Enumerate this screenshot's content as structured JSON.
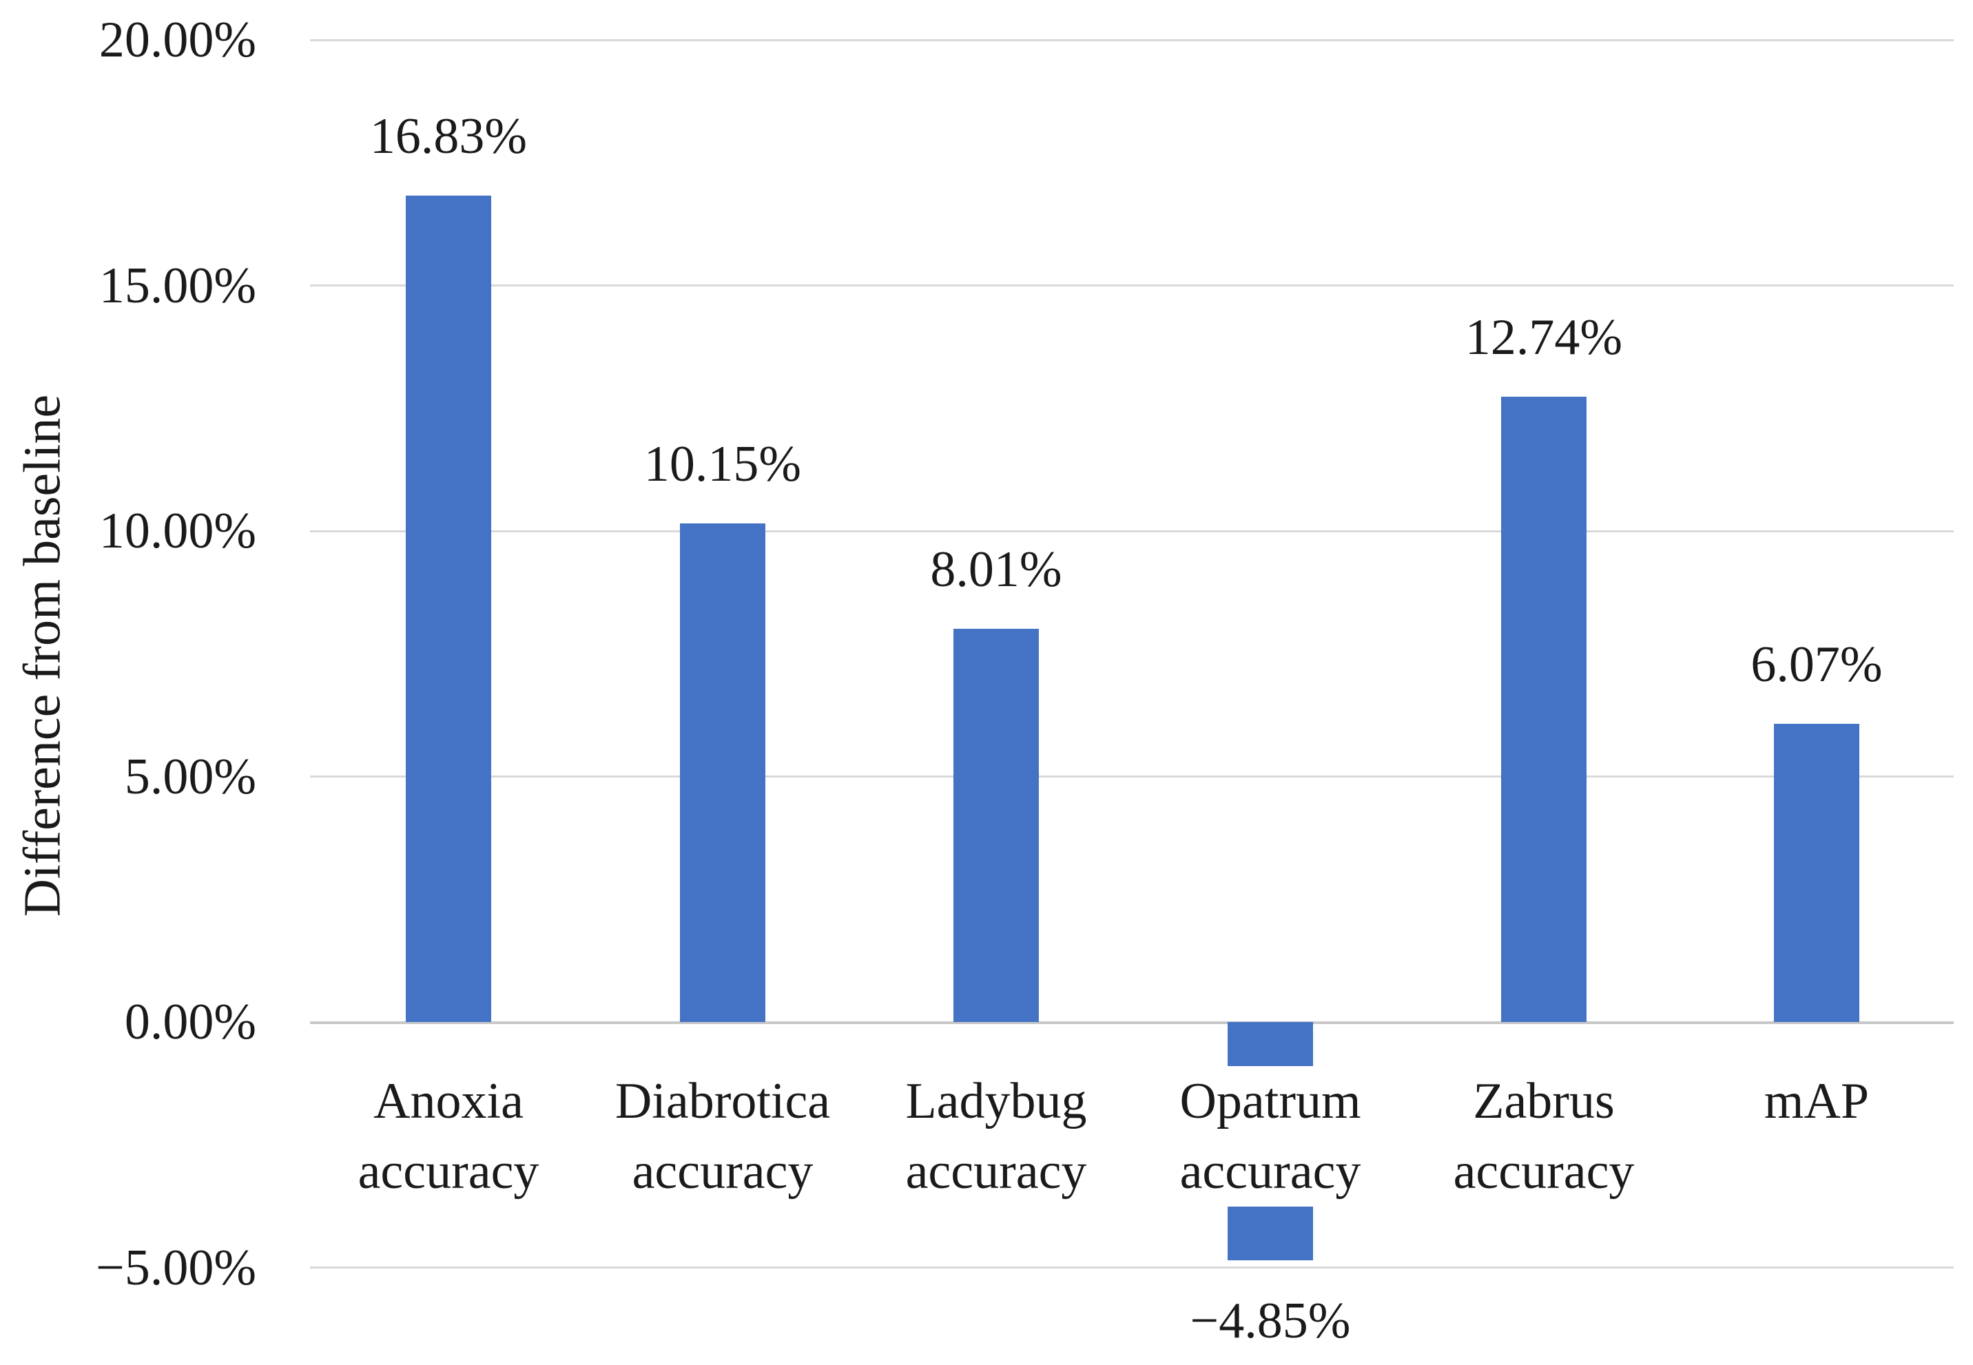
{
  "chart_data": {
    "type": "bar",
    "title": "",
    "xlabel": "",
    "ylabel": "Difference from baseline",
    "categories": [
      "Anoxia accuracy",
      "Diabrotica accuracy",
      "Ladybug accuracy",
      "Opatrum accuracy",
      "Zabrus accuracy",
      "mAP"
    ],
    "category_lines": [
      [
        "Anoxia",
        "accuracy"
      ],
      [
        "Diabrotica",
        "accuracy"
      ],
      [
        "Ladybug",
        "accuracy"
      ],
      [
        "Opatrum",
        "accuracy"
      ],
      [
        "Zabrus",
        "accuracy"
      ],
      [
        "mAP"
      ]
    ],
    "series": [
      {
        "name": "Difference from baseline",
        "values": [
          16.83,
          10.15,
          8.01,
          -4.85,
          12.74,
          6.07
        ],
        "data_labels": [
          "16.83%",
          "10.15%",
          "8.01%",
          "−4.85%",
          "12.74%",
          "6.07%"
        ]
      }
    ],
    "y_ticks": [
      {
        "value": 20,
        "label": "20.00%"
      },
      {
        "value": 15,
        "label": "15.00%"
      },
      {
        "value": 10,
        "label": "10.00%"
      },
      {
        "value": 5,
        "label": "5.00%"
      },
      {
        "value": 0,
        "label": "0.00%"
      },
      {
        "value": -5,
        "label": "−5.00%"
      }
    ],
    "ylim": [
      -5,
      20
    ],
    "grid": true,
    "legend": false,
    "colors": {
      "bar_fill": "#4472C4",
      "gridline": "#D9D9D9",
      "axis_line": "#C8C8C8",
      "text": "#1A1A1A",
      "background": "#FFFFFF"
    }
  }
}
